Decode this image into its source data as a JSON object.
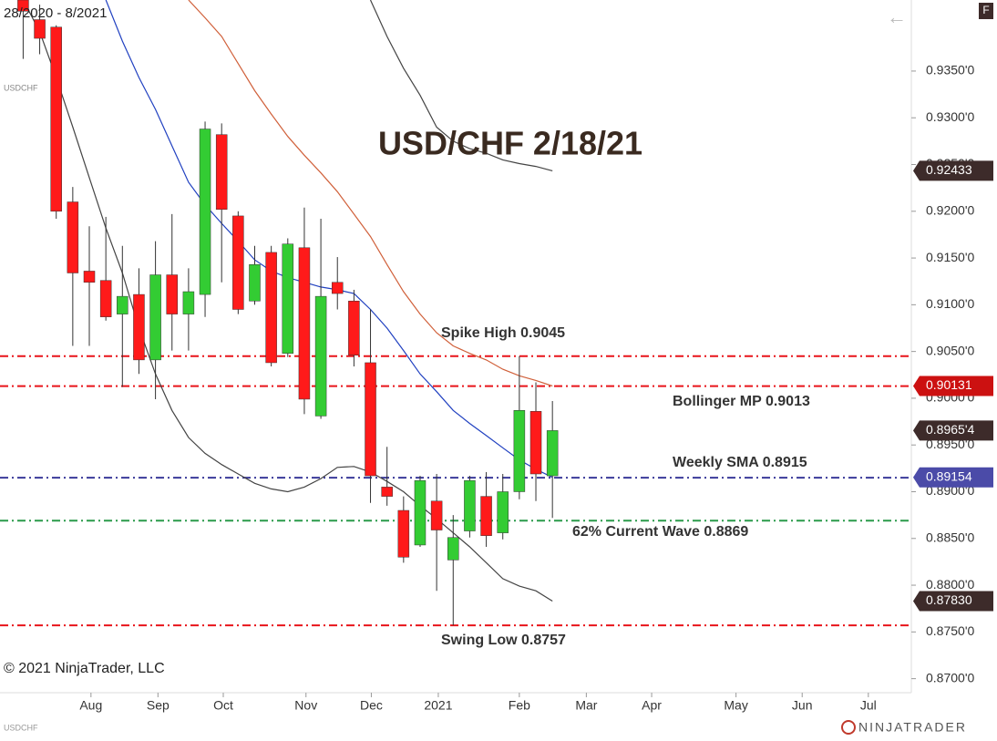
{
  "chart_data": {
    "type": "candlestick",
    "title": "USD/CHF 2/18/21",
    "x": [
      0,
      1,
      2,
      3,
      4,
      5,
      6,
      7,
      8,
      9,
      10,
      11,
      12,
      13,
      14,
      15,
      16,
      17,
      18,
      19,
      20,
      21,
      22,
      23,
      24,
      25,
      26,
      27,
      28,
      29,
      30,
      31,
      32
    ],
    "open": [
      0.9426,
      0.9405,
      0.9397,
      0.921,
      0.9136,
      0.9126,
      0.909,
      0.9111,
      0.9041,
      0.9132,
      0.909,
      0.9111,
      0.9282,
      0.9195,
      0.9104,
      0.9156,
      0.9048,
      0.9161,
      0.8981,
      0.9124,
      0.9104,
      0.9038,
      0.8905,
      0.888,
      0.8843,
      0.889,
      0.8827,
      0.8858,
      0.8895,
      0.8856,
      0.89,
      0.8986,
      0.8917
    ],
    "high": [
      0.943,
      0.9421,
      0.9399,
      0.9226,
      0.9184,
      0.9194,
      0.9163,
      0.9139,
      0.9168,
      0.9197,
      0.9139,
      0.9296,
      0.9294,
      0.92,
      0.9163,
      0.9163,
      0.9171,
      0.9204,
      0.9192,
      0.9151,
      0.9116,
      0.9095,
      0.8948,
      0.8895,
      0.8917,
      0.8919,
      0.8875,
      0.8917,
      0.8921,
      0.8919,
      0.9045,
      0.9017,
      0.8997
    ],
    "low": [
      0.9363,
      0.9368,
      0.9192,
      0.9056,
      0.9056,
      0.9083,
      0.9012,
      0.9026,
      0.8999,
      0.9051,
      0.9051,
      0.9087,
      0.9124,
      0.909,
      0.91,
      0.9034,
      0.9044,
      0.8983,
      0.8978,
      0.9095,
      0.9034,
      0.8888,
      0.8885,
      0.8824,
      0.8841,
      0.8794,
      0.8757,
      0.8851,
      0.8841,
      0.8849,
      0.8892,
      0.889,
      0.8872
    ],
    "close": [
      0.9414,
      0.9385,
      0.92,
      0.9134,
      0.9124,
      0.9087,
      0.9109,
      0.9041,
      0.9132,
      0.909,
      0.9114,
      0.9288,
      0.9202,
      0.9095,
      0.9143,
      0.9038,
      0.9165,
      0.8999,
      0.9109,
      0.9112,
      0.9046,
      0.8917,
      0.8895,
      0.883,
      0.8912,
      0.8859,
      0.8851,
      0.8912,
      0.8853,
      0.89,
      0.8987,
      0.8919,
      0.89654
    ],
    "up_color": "#33cc33",
    "down_color": "#ff1a1a",
    "series": [
      {
        "color": "#444444",
        "values": [
          null,
          null,
          null,
          null,
          null,
          null,
          null,
          null,
          null,
          null,
          null,
          null,
          null,
          null,
          null,
          null,
          null,
          null,
          null,
          null,
          null,
          0.9426,
          0.9387,
          0.9353,
          0.9324,
          0.929,
          0.9275,
          0.9267,
          0.9262,
          0.9255,
          0.9251,
          0.9248,
          0.92433
        ]
      },
      {
        "color": "#d0603a",
        "values": [
          null,
          null,
          null,
          null,
          null,
          null,
          null,
          null,
          null,
          null,
          0.9426,
          0.9407,
          0.9387,
          0.9358,
          0.9329,
          0.9304,
          0.928,
          0.926,
          0.9241,
          0.9221,
          0.9197,
          0.9173,
          0.9143,
          0.9114,
          0.909,
          0.907,
          0.9056,
          0.9048,
          0.9041,
          0.9031,
          0.9024,
          0.9019,
          0.90131
        ]
      },
      {
        "color": "#444444",
        "values": [
          0.9426,
          0.9392,
          0.9343,
          0.929,
          0.9236,
          0.9182,
          0.9134,
          0.9075,
          0.9026,
          0.8987,
          0.8958,
          0.8941,
          0.8929,
          0.8919,
          0.8909,
          0.8903,
          0.89,
          0.8905,
          0.8914,
          0.8926,
          0.8927,
          0.8921,
          0.8911,
          0.89,
          0.8885,
          0.8871,
          0.8856,
          0.8841,
          0.8824,
          0.8807,
          0.8799,
          0.8794,
          0.8783
        ]
      },
      {
        "color": "#2040c0",
        "values": [
          null,
          null,
          null,
          null,
          null,
          0.9426,
          0.9382,
          0.9343,
          0.9309,
          0.927,
          0.9231,
          0.9207,
          0.9187,
          0.9168,
          0.9148,
          0.9136,
          0.9129,
          0.9124,
          0.9119,
          0.9116,
          0.9112,
          0.9095,
          0.9075,
          0.9051,
          0.9026,
          0.9007,
          0.8987,
          0.8973,
          0.896,
          0.8947,
          0.8934,
          0.8924,
          0.89154
        ]
      }
    ],
    "levels": [
      {
        "value": 0.9045,
        "color": "#e8141a",
        "label": "Spike High 0.9045"
      },
      {
        "value": 0.9013,
        "color": "#e8141a",
        "label": "Bollinger MP 0.9013"
      },
      {
        "value": 0.8915,
        "color": "#3a3a9a",
        "label": "Weekly SMA  0.8915"
      },
      {
        "value": 0.8869,
        "color": "#2a9a4a",
        "label": "62% Current Wave 0.8869"
      },
      {
        "value": 0.8757,
        "color": "#e8141a",
        "label": "Swing Low 0.8757"
      }
    ],
    "price_labels": [
      {
        "value": 0.92433,
        "label": "0.92433",
        "color": "#3d2b2a"
      },
      {
        "value": 0.90131,
        "label": "0.90131",
        "color": "#cc1111"
      },
      {
        "value": 0.89654,
        "label": "0.8965'4",
        "color": "#3d2b2a"
      },
      {
        "value": 0.89154,
        "label": "0.89154",
        "color": "#4b4ba8"
      },
      {
        "value": 0.8783,
        "label": "0.87830",
        "color": "#3d2b2a"
      }
    ],
    "xlim": [
      -1.4,
      53.7
    ],
    "xticks": [
      {
        "value": 4.1,
        "label": "Aug"
      },
      {
        "value": 8.15,
        "label": "Sep"
      },
      {
        "value": 12.1,
        "label": "Oct"
      },
      {
        "value": 17.1,
        "label": "Nov"
      },
      {
        "value": 21.05,
        "label": "Dec"
      },
      {
        "value": 25.1,
        "label": "2021"
      },
      {
        "value": 30,
        "label": "Feb"
      },
      {
        "value": 34.05,
        "label": "Mar"
      },
      {
        "value": 38,
        "label": "Apr"
      },
      {
        "value": 43.1,
        "label": "May"
      },
      {
        "value": 47.1,
        "label": "Jun"
      },
      {
        "value": 51.1,
        "label": "Jul"
      }
    ],
    "ylim": [
      0.8685,
      0.9426
    ],
    "yticks": [
      {
        "value": 0.87,
        "label": "0.8700'0"
      },
      {
        "value": 0.875,
        "label": "0.8750'0"
      },
      {
        "value": 0.88,
        "label": "0.8800'0"
      },
      {
        "value": 0.885,
        "label": "0.8850'0"
      },
      {
        "value": 0.89,
        "label": "0.8900'0"
      },
      {
        "value": 0.895,
        "label": "0.8950'0"
      },
      {
        "value": 0.9,
        "label": "0.9000'0"
      },
      {
        "value": 0.905,
        "label": "0.9050'0"
      },
      {
        "value": 0.91,
        "label": "0.9100'0"
      },
      {
        "value": 0.915,
        "label": "0.9150'0"
      },
      {
        "value": 0.92,
        "label": "0.9200'0"
      },
      {
        "value": 0.925,
        "label": "0.9250'0"
      },
      {
        "value": 0.93,
        "label": "0.9300'0"
      },
      {
        "value": 0.935,
        "label": "0.9350'0"
      }
    ],
    "grid": false
  },
  "ui": {
    "date_range": "28/2020 - 8/2021",
    "symbol": "USDCHF",
    "copyright": "© 2021 NinjaTrader, LLC",
    "logo": "NINJATRADER",
    "badge": "F",
    "back": "←",
    "corner_symbol": "USDCHF"
  }
}
